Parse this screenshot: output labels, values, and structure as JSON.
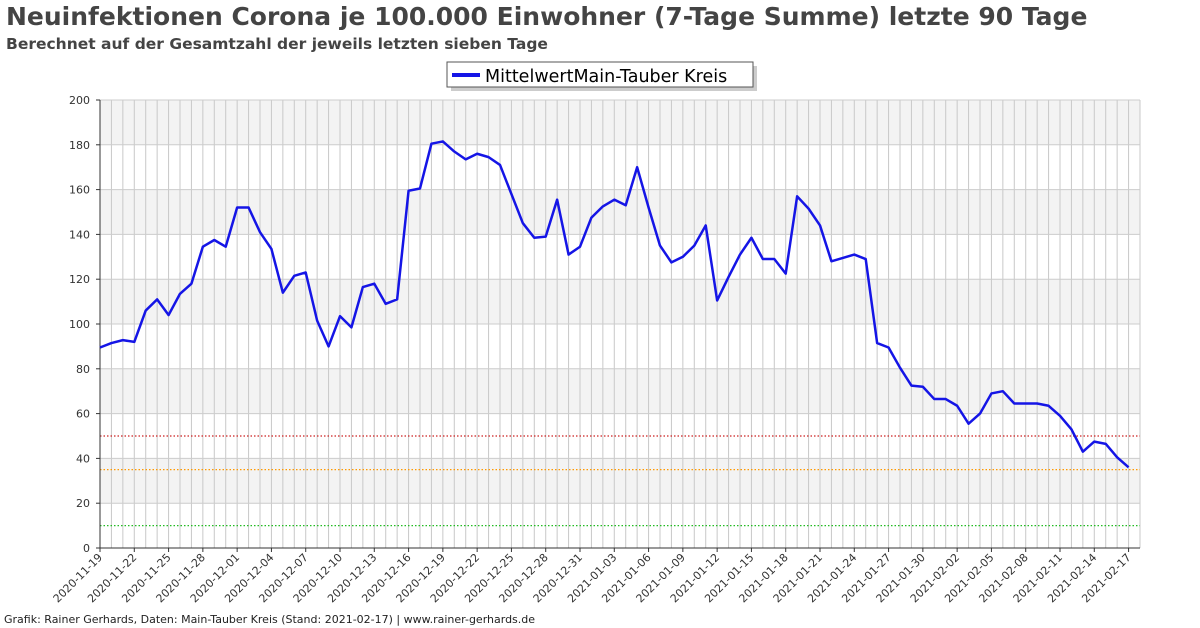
{
  "title": "Neuinfektionen Corona je 100.000 Einwohner (7-Tage Summe) letzte 90 Tage",
  "subtitle": "Berechnet auf der Gesamtzahl der jeweils letzten sieben Tage",
  "footer": "Grafik: Rainer Gerhards, Daten: Main-Tauber Kreis (Stand: 2021-02-17) | www.rainer-gerhards.de",
  "chart_data": {
    "type": "line",
    "title": "Neuinfektionen Corona je 100.000 Einwohner (7-Tage Summe) letzte 90 Tage",
    "subtitle": "Berechnet auf der Gesamtzahl der jeweils letzten sieben Tage",
    "xlabel": "",
    "ylabel": "",
    "ylim": [
      0,
      200
    ],
    "yticks": [
      0,
      20,
      40,
      60,
      80,
      100,
      120,
      140,
      160,
      180,
      200
    ],
    "x_start": "2020-11-19",
    "x_end": "2021-02-18",
    "x_tick_labels": [
      "2020-11-19",
      "2020-11-22",
      "2020-11-25",
      "2020-11-28",
      "2020-12-01",
      "2020-12-04",
      "2020-12-07",
      "2020-12-10",
      "2020-12-13",
      "2020-12-16",
      "2020-12-19",
      "2020-12-22",
      "2020-12-25",
      "2020-12-28",
      "2020-12-31",
      "2021-01-03",
      "2021-01-06",
      "2021-01-09",
      "2021-01-12",
      "2021-01-15",
      "2021-01-18",
      "2021-01-21",
      "2021-01-24",
      "2021-01-27",
      "2021-01-30",
      "2021-02-02",
      "2021-02-05",
      "2021-02-08",
      "2021-02-11",
      "2021-02-14",
      "2021-02-17"
    ],
    "grid": true,
    "legend_position": "top-center",
    "series": [
      {
        "name": "MittelwertMain-Tauber Kreis",
        "color": "#1515e6",
        "values": [
          89.5,
          91.5,
          92.8,
          92,
          106,
          111,
          104,
          113.5,
          118,
          134.5,
          137.5,
          134.5,
          152,
          152,
          141,
          133.5,
          114,
          121.5,
          123,
          101.5,
          90,
          103.5,
          98.5,
          116.5,
          118,
          109,
          111,
          159.5,
          160.5,
          180.5,
          181.5,
          177,
          173.5,
          176,
          174.5,
          171,
          158,
          145,
          138.5,
          139,
          155.5,
          131,
          134.5,
          147.5,
          152.5,
          155.5,
          153,
          170,
          152,
          135,
          127.5,
          130,
          135,
          144,
          110.5,
          121,
          131,
          138.5,
          129,
          129,
          122.5,
          157,
          151.5,
          144,
          128,
          129.5,
          131,
          129,
          91.5,
          89.5,
          80.5,
          72.5,
          72,
          66.5,
          66.5,
          63.5,
          55.5,
          60,
          69,
          70,
          64.5,
          64.5,
          64.5,
          63.5,
          59,
          53,
          43,
          47.5,
          46.5,
          40.5,
          36
        ]
      }
    ],
    "reference_lines": [
      {
        "value": 50,
        "color": "#cc2222"
      },
      {
        "value": 35,
        "color": "#ff9900"
      },
      {
        "value": 10,
        "color": "#22bb22"
      }
    ]
  }
}
